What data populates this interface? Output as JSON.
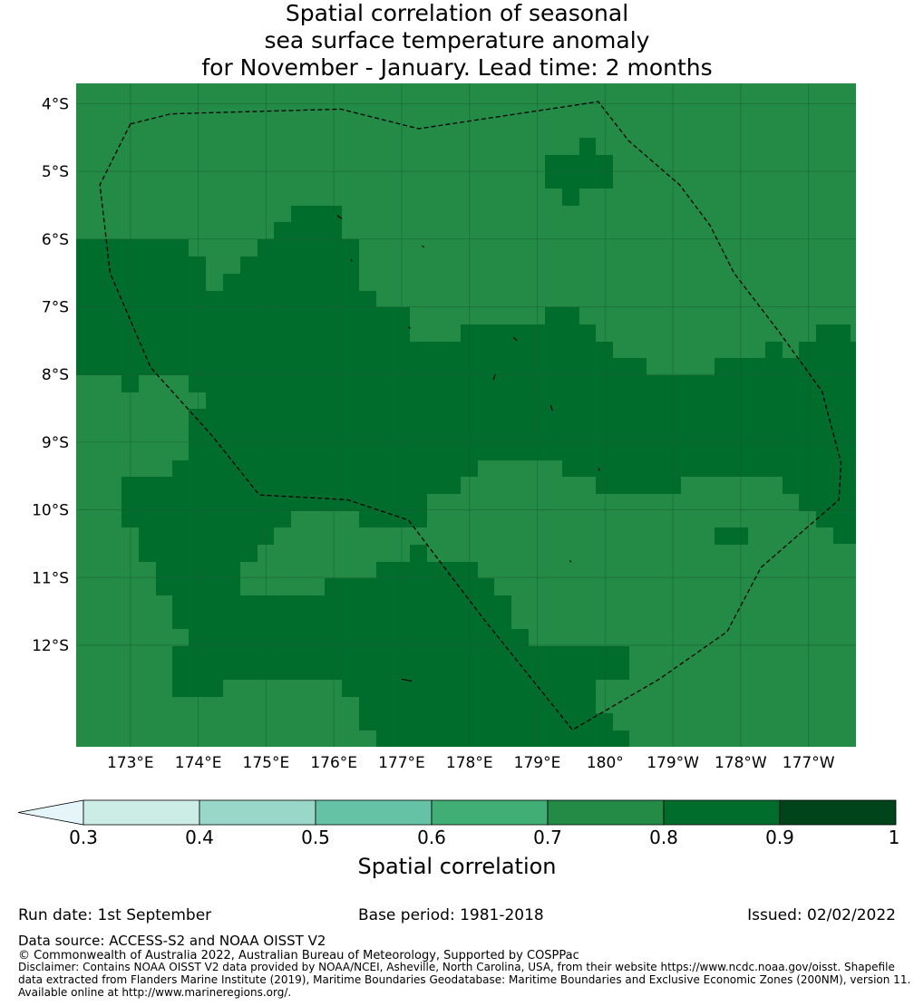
{
  "title": {
    "line1": "Spatial correlation of seasonal",
    "line2": "sea surface temperature anomaly",
    "line3": "for November - January. Lead time: 2 months"
  },
  "colors": {
    "band_0_7_0_8": "#238b45",
    "band_0_8_0_9": "#006d2c",
    "boundary": "#000000",
    "gridline": "#1a5a32"
  },
  "map": {
    "lat_labels": [
      "4°S",
      "5°S",
      "6°S",
      "7°S",
      "8°S",
      "9°S",
      "10°S",
      "11°S",
      "12°S"
    ],
    "lat_values": [
      -4,
      -5,
      -6,
      -7,
      -8,
      -9,
      -10,
      -11,
      -12
    ],
    "lon_labels": [
      "173°E",
      "174°E",
      "175°E",
      "176°E",
      "177°E",
      "178°E",
      "179°E",
      "180°",
      "179°W",
      "178°W",
      "177°W"
    ],
    "lon_values": [
      173,
      174,
      175,
      176,
      177,
      178,
      179,
      180,
      181,
      182,
      183
    ],
    "lon_range": [
      172.2,
      183.7
    ],
    "lat_range": [
      -3.7,
      -13.5
    ],
    "field_default_value": 0.75,
    "high_correlation_regions_value": 0.85,
    "boundary_style": "dashed",
    "eez_boundary": [
      [
        173.0,
        -4.3
      ],
      [
        173.6,
        -4.15
      ],
      [
        176.1,
        -4.08
      ],
      [
        177.25,
        -4.37
      ],
      [
        179.9,
        -3.97
      ],
      [
        180.35,
        -4.55
      ],
      [
        181.1,
        -5.2
      ],
      [
        181.55,
        -5.8
      ],
      [
        181.9,
        -6.5
      ],
      [
        182.55,
        -7.35
      ],
      [
        183.2,
        -8.25
      ],
      [
        183.48,
        -9.3
      ],
      [
        183.45,
        -9.85
      ],
      [
        182.3,
        -10.85
      ],
      [
        181.8,
        -11.8
      ],
      [
        180.8,
        -12.5
      ],
      [
        179.52,
        -13.25
      ],
      [
        178.2,
        -11.6
      ],
      [
        177.1,
        -10.15
      ],
      [
        176.2,
        -9.85
      ],
      [
        174.9,
        -9.78
      ],
      [
        174.2,
        -8.9
      ],
      [
        173.3,
        -7.9
      ],
      [
        172.7,
        -6.5
      ],
      [
        172.55,
        -5.2
      ],
      [
        173.0,
        -4.3
      ]
    ],
    "islands": [
      [
        [
          176.05,
          -5.65
        ],
        [
          176.12,
          -5.7
        ]
      ],
      [
        [
          177.3,
          -6.1
        ],
        [
          177.33,
          -6.12
        ]
      ],
      [
        [
          176.25,
          -6.3
        ],
        [
          176.27,
          -6.33
        ]
      ],
      [
        [
          177.1,
          -7.3
        ],
        [
          177.13,
          -7.32
        ]
      ],
      [
        [
          178.65,
          -7.45
        ],
        [
          178.7,
          -7.5
        ]
      ],
      [
        [
          178.38,
          -8.0
        ],
        [
          178.35,
          -8.08
        ]
      ],
      [
        [
          179.2,
          -8.45
        ],
        [
          179.22,
          -8.53
        ]
      ],
      [
        [
          179.9,
          -9.38
        ],
        [
          179.92,
          -9.42
        ]
      ],
      [
        [
          179.48,
          -10.75
        ],
        [
          179.5,
          -10.77
        ]
      ],
      [
        [
          177.0,
          -12.5
        ],
        [
          177.15,
          -12.53
        ]
      ]
    ]
  },
  "colorbar": {
    "label": "Spatial correlation",
    "ticks": [
      "0.3",
      "0.4",
      "0.5",
      "0.6",
      "0.7",
      "0.8",
      "0.9",
      "1"
    ],
    "tick_values": [
      0.3,
      0.4,
      0.5,
      0.6,
      0.7,
      0.8,
      0.9,
      1.0
    ],
    "colors": [
      "#ccece6",
      "#99d8c9",
      "#66c2a4",
      "#41ae76",
      "#238b45",
      "#006d2c",
      "#00441b"
    ],
    "extend_color": "#e5f5f9",
    "extend": "min"
  },
  "footer": {
    "run_date": "Run date: 1st September",
    "base_period": "Base period: 1981-2018",
    "issued": "Issued: 02/02/2022",
    "data_source": "Data source: ACCESS-S2 and NOAA OISST V2",
    "copyright": "© Commonwealth of Australia 2022, Australian Bureau of Meteorology, Supported by COSPPac",
    "disclaimer": "Disclaimer: Contains NOAA OISST V2 data provided by NOAA/NCEI, Asheville, North Carolina, USA, from their website https://www.ncdc.noaa.gov/oisst. Shapefile data extracted from Flanders Marine Institute (2019), Maritime Boundaries Geodatabase: Maritime Boundaries and Exclusive Economic Zones (200NM), version 11. Available online at http://www.marineregions.org/."
  }
}
